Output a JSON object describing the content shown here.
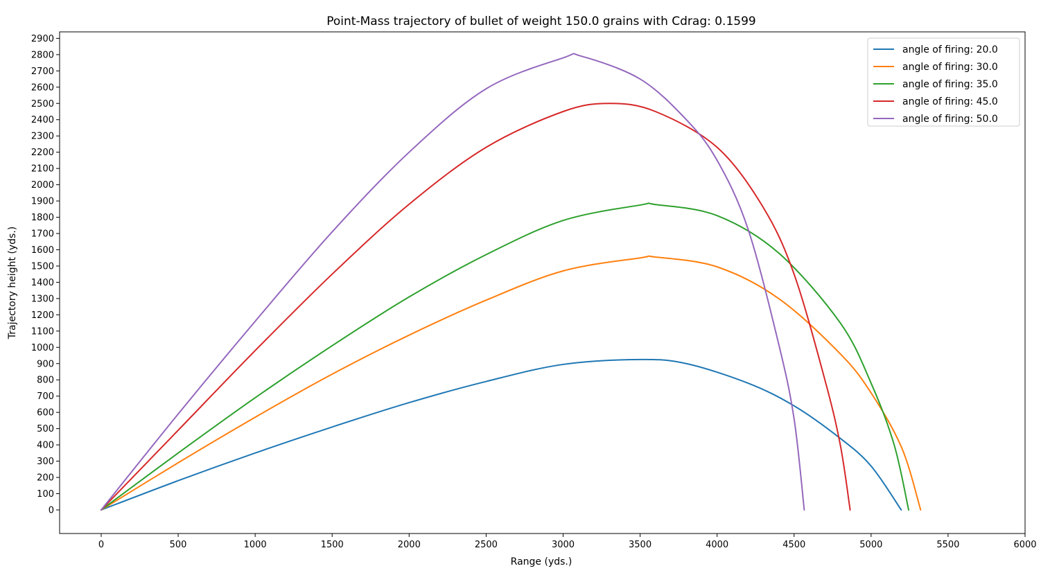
{
  "chart_data": {
    "type": "line",
    "title": "Point-Mass trajectory of bullet of weight 150.0 grains with Cdrag: 0.1599",
    "xlabel": "Range (yds.)",
    "ylabel": "Trajectory height (yds.)",
    "xlim": [
      -270,
      6000
    ],
    "ylim": [
      -145,
      2940
    ],
    "xticks": [
      0,
      500,
      1000,
      1500,
      2000,
      2500,
      3000,
      3500,
      4000,
      4500,
      5000,
      5500,
      6000
    ],
    "yticks": [
      0,
      100,
      200,
      300,
      400,
      500,
      600,
      700,
      800,
      900,
      1000,
      1100,
      1200,
      1300,
      1400,
      1500,
      1600,
      1700,
      1800,
      1900,
      2000,
      2100,
      2200,
      2300,
      2400,
      2500,
      2600,
      2700,
      2800,
      2900
    ],
    "grid": false,
    "legend_position": "top-right",
    "series": [
      {
        "name": "angle of firing: 20.0",
        "color": "#1f77b4",
        "points": [
          [
            0,
            0
          ],
          [
            500,
            180
          ],
          [
            1000,
            350
          ],
          [
            1500,
            510
          ],
          [
            2000,
            660
          ],
          [
            2500,
            790
          ],
          [
            3000,
            895
          ],
          [
            3500,
            925
          ],
          [
            3800,
            900
          ],
          [
            4200,
            780
          ],
          [
            4500,
            640
          ],
          [
            4800,
            440
          ],
          [
            5000,
            270
          ],
          [
            5196,
            0
          ]
        ]
      },
      {
        "name": "angle of firing: 30.0",
        "color": "#ff7f0e",
        "points": [
          [
            0,
            0
          ],
          [
            500,
            290
          ],
          [
            1000,
            570
          ],
          [
            1500,
            835
          ],
          [
            2000,
            1075
          ],
          [
            2500,
            1290
          ],
          [
            3000,
            1470
          ],
          [
            3500,
            1550
          ],
          [
            3600,
            1555
          ],
          [
            4000,
            1495
          ],
          [
            4400,
            1300
          ],
          [
            4800,
            960
          ],
          [
            5000,
            720
          ],
          [
            5200,
            380
          ],
          [
            5322,
            0
          ]
        ]
      },
      {
        "name": "angle of firing: 35.0",
        "color": "#2ca02c",
        "points": [
          [
            0,
            0
          ],
          [
            500,
            350
          ],
          [
            1000,
            690
          ],
          [
            1500,
            1010
          ],
          [
            2000,
            1310
          ],
          [
            2500,
            1570
          ],
          [
            3000,
            1780
          ],
          [
            3500,
            1875
          ],
          [
            3600,
            1878
          ],
          [
            4000,
            1810
          ],
          [
            4400,
            1580
          ],
          [
            4800,
            1150
          ],
          [
            5000,
            780
          ],
          [
            5150,
            400
          ],
          [
            5244,
            0
          ]
        ]
      },
      {
        "name": "angle of firing: 45.0",
        "color": "#d62728",
        "points": [
          [
            0,
            0
          ],
          [
            500,
            490
          ],
          [
            1000,
            980
          ],
          [
            1500,
            1450
          ],
          [
            2000,
            1880
          ],
          [
            2500,
            2230
          ],
          [
            3000,
            2450
          ],
          [
            3300,
            2500
          ],
          [
            3600,
            2450
          ],
          [
            4000,
            2230
          ],
          [
            4300,
            1860
          ],
          [
            4500,
            1450
          ],
          [
            4700,
            800
          ],
          [
            4800,
            400
          ],
          [
            4864,
            0
          ]
        ]
      },
      {
        "name": "angle of firing: 50.0",
        "color": "#9467bd",
        "points": [
          [
            0,
            0
          ],
          [
            500,
            590
          ],
          [
            1000,
            1160
          ],
          [
            1500,
            1710
          ],
          [
            2000,
            2200
          ],
          [
            2500,
            2590
          ],
          [
            3000,
            2780
          ],
          [
            3120,
            2790
          ],
          [
            3500,
            2650
          ],
          [
            3800,
            2400
          ],
          [
            4000,
            2150
          ],
          [
            4200,
            1730
          ],
          [
            4400,
            1020
          ],
          [
            4500,
            560
          ],
          [
            4566,
            0
          ]
        ]
      }
    ]
  }
}
